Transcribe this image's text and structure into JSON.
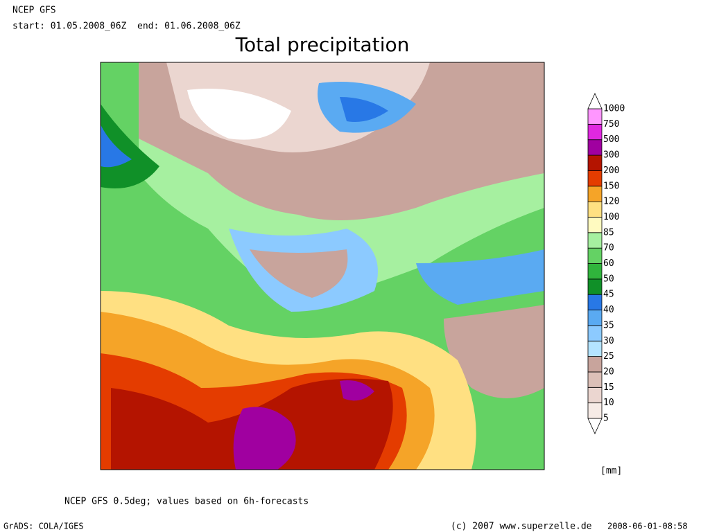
{
  "header": {
    "model": "NCEP GFS",
    "period": "start: 01.05.2008_06Z  end: 01.06.2008_06Z",
    "title": "Total precipitation"
  },
  "legend": {
    "levels": [
      5,
      10,
      15,
      20,
      25,
      30,
      35,
      40,
      45,
      50,
      60,
      70,
      85,
      100,
      120,
      150,
      200,
      300,
      500,
      750,
      1000
    ],
    "colors": [
      "#ffffff",
      "#f6ebe6",
      "#ebd6d0",
      "#dcc0b8",
      "#c8a49c",
      "#b4e4ff",
      "#8ccaff",
      "#5aaaf2",
      "#2878e6",
      "#109028",
      "#30b43c",
      "#64d264",
      "#a6f0a0",
      "#fffac0",
      "#ffe082",
      "#f5a428",
      "#e43c00",
      "#b41400",
      "#a000a0",
      "#e028e0",
      "#ff96ff",
      "#ffffff"
    ],
    "unit": "[mm]"
  },
  "footer": {
    "note": "NCEP GFS 0.5deg; values based on 6h-forecasts",
    "software": "GrADS: COLA/IGES",
    "copyright": "(c) 2007 www.superzelle.de",
    "timestamp": "2008-06-01-08:58"
  }
}
